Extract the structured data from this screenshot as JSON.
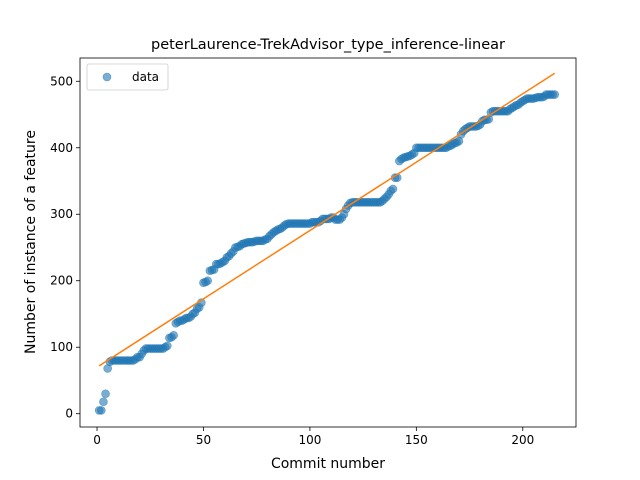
{
  "chart_data": {
    "type": "scatter",
    "title": "peterLaurence-TrekAdvisor_type_inference-linear",
    "xlabel": "Commit number",
    "ylabel": "Number of instance of a feature",
    "xlim": [
      -8,
      225
    ],
    "ylim": [
      -20,
      535
    ],
    "xticks": [
      0,
      50,
      100,
      150,
      200
    ],
    "yticks": [
      0,
      100,
      200,
      300,
      400,
      500
    ],
    "grid": false,
    "legend": {
      "position": "top-left",
      "entries": [
        "data"
      ]
    },
    "series": [
      {
        "name": "data",
        "kind": "scatter",
        "color": "#1f77b4",
        "alpha": 0.6,
        "points": [
          [
            1,
            5
          ],
          [
            2,
            5
          ],
          [
            3,
            18
          ],
          [
            4,
            30
          ],
          [
            5,
            68
          ],
          [
            6,
            78
          ],
          [
            7,
            80
          ],
          [
            8,
            80
          ],
          [
            9,
            80
          ],
          [
            10,
            80
          ],
          [
            11,
            80
          ],
          [
            12,
            80
          ],
          [
            13,
            80
          ],
          [
            14,
            80
          ],
          [
            15,
            80
          ],
          [
            16,
            80
          ],
          [
            17,
            80
          ],
          [
            18,
            82
          ],
          [
            19,
            85
          ],
          [
            20,
            85
          ],
          [
            21,
            90
          ],
          [
            22,
            95
          ],
          [
            23,
            98
          ],
          [
            24,
            98
          ],
          [
            25,
            98
          ],
          [
            26,
            98
          ],
          [
            27,
            98
          ],
          [
            28,
            98
          ],
          [
            29,
            98
          ],
          [
            30,
            98
          ],
          [
            31,
            98
          ],
          [
            32,
            100
          ],
          [
            33,
            102
          ],
          [
            34,
            114
          ],
          [
            35,
            115
          ],
          [
            36,
            118
          ],
          [
            37,
            136
          ],
          [
            38,
            138
          ],
          [
            39,
            140
          ],
          [
            40,
            140
          ],
          [
            41,
            142
          ],
          [
            42,
            144
          ],
          [
            43,
            144
          ],
          [
            44,
            146
          ],
          [
            45,
            150
          ],
          [
            46,
            152
          ],
          [
            47,
            158
          ],
          [
            48,
            160
          ],
          [
            49,
            167
          ],
          [
            50,
            197
          ],
          [
            51,
            198
          ],
          [
            52,
            200
          ],
          [
            53,
            215
          ],
          [
            54,
            216
          ],
          [
            55,
            217
          ],
          [
            56,
            225
          ],
          [
            57,
            225
          ],
          [
            58,
            226
          ],
          [
            59,
            228
          ],
          [
            60,
            230
          ],
          [
            61,
            235
          ],
          [
            62,
            237
          ],
          [
            63,
            241
          ],
          [
            64,
            244
          ],
          [
            65,
            250
          ],
          [
            66,
            251
          ],
          [
            67,
            252
          ],
          [
            68,
            255
          ],
          [
            69,
            256
          ],
          [
            70,
            257
          ],
          [
            71,
            258
          ],
          [
            72,
            258
          ],
          [
            73,
            258
          ],
          [
            74,
            259
          ],
          [
            75,
            260
          ],
          [
            76,
            260
          ],
          [
            77,
            260
          ],
          [
            78,
            260
          ],
          [
            79,
            262
          ],
          [
            80,
            263
          ],
          [
            81,
            267
          ],
          [
            82,
            270
          ],
          [
            83,
            273
          ],
          [
            84,
            275
          ],
          [
            85,
            277
          ],
          [
            86,
            278
          ],
          [
            87,
            280
          ],
          [
            88,
            283
          ],
          [
            89,
            285
          ],
          [
            90,
            286
          ],
          [
            91,
            286
          ],
          [
            92,
            286
          ],
          [
            93,
            286
          ],
          [
            94,
            286
          ],
          [
            95,
            286
          ],
          [
            96,
            286
          ],
          [
            97,
            286
          ],
          [
            98,
            286
          ],
          [
            99,
            286
          ],
          [
            100,
            286
          ],
          [
            101,
            288
          ],
          [
            102,
            288
          ],
          [
            103,
            288
          ],
          [
            104,
            288
          ],
          [
            105,
            290
          ],
          [
            106,
            293
          ],
          [
            107,
            293
          ],
          [
            108,
            293
          ],
          [
            109,
            293
          ],
          [
            110,
            295
          ],
          [
            111,
            295
          ],
          [
            112,
            292
          ],
          [
            113,
            292
          ],
          [
            114,
            292
          ],
          [
            115,
            295
          ],
          [
            116,
            300
          ],
          [
            117,
            308
          ],
          [
            118,
            313
          ],
          [
            119,
            317
          ],
          [
            120,
            318
          ],
          [
            121,
            318
          ],
          [
            122,
            318
          ],
          [
            123,
            318
          ],
          [
            124,
            318
          ],
          [
            125,
            318
          ],
          [
            126,
            318
          ],
          [
            127,
            318
          ],
          [
            128,
            318
          ],
          [
            129,
            318
          ],
          [
            130,
            318
          ],
          [
            131,
            318
          ],
          [
            132,
            318
          ],
          [
            133,
            318
          ],
          [
            134,
            320
          ],
          [
            135,
            323
          ],
          [
            136,
            326
          ],
          [
            137,
            330
          ],
          [
            138,
            335
          ],
          [
            139,
            338
          ],
          [
            140,
            355
          ],
          [
            141,
            355
          ],
          [
            142,
            380
          ],
          [
            143,
            383
          ],
          [
            144,
            385
          ],
          [
            145,
            386
          ],
          [
            146,
            387
          ],
          [
            147,
            388
          ],
          [
            148,
            390
          ],
          [
            149,
            392
          ],
          [
            150,
            400
          ],
          [
            151,
            400
          ],
          [
            152,
            400
          ],
          [
            153,
            400
          ],
          [
            154,
            400
          ],
          [
            155,
            400
          ],
          [
            156,
            400
          ],
          [
            157,
            400
          ],
          [
            158,
            400
          ],
          [
            159,
            400
          ],
          [
            160,
            400
          ],
          [
            161,
            400
          ],
          [
            162,
            400
          ],
          [
            163,
            400
          ],
          [
            164,
            400
          ],
          [
            165,
            402
          ],
          [
            166,
            403
          ],
          [
            167,
            405
          ],
          [
            168,
            407
          ],
          [
            169,
            408
          ],
          [
            170,
            410
          ],
          [
            171,
            420
          ],
          [
            172,
            425
          ],
          [
            173,
            428
          ],
          [
            174,
            430
          ],
          [
            175,
            432
          ],
          [
            176,
            432
          ],
          [
            177,
            432
          ],
          [
            178,
            432
          ],
          [
            179,
            433
          ],
          [
            180,
            435
          ],
          [
            181,
            440
          ],
          [
            182,
            442
          ],
          [
            183,
            442
          ],
          [
            184,
            443
          ],
          [
            185,
            453
          ],
          [
            186,
            455
          ],
          [
            187,
            455
          ],
          [
            188,
            455
          ],
          [
            189,
            455
          ],
          [
            190,
            455
          ],
          [
            191,
            455
          ],
          [
            192,
            455
          ],
          [
            193,
            455
          ],
          [
            194,
            458
          ],
          [
            195,
            460
          ],
          [
            196,
            462
          ],
          [
            197,
            464
          ],
          [
            198,
            465
          ],
          [
            199,
            468
          ],
          [
            200,
            470
          ],
          [
            201,
            472
          ],
          [
            202,
            474
          ],
          [
            203,
            474
          ],
          [
            204,
            474
          ],
          [
            205,
            474
          ],
          [
            206,
            475
          ],
          [
            207,
            476
          ],
          [
            208,
            476
          ],
          [
            209,
            476
          ],
          [
            210,
            477
          ],
          [
            211,
            480
          ],
          [
            212,
            480
          ],
          [
            213,
            480
          ],
          [
            214,
            480
          ],
          [
            215,
            480
          ]
        ]
      },
      {
        "kind": "line",
        "color": "#ff7f0e",
        "points": [
          [
            1,
            72
          ],
          [
            215,
            512
          ]
        ]
      }
    ]
  }
}
